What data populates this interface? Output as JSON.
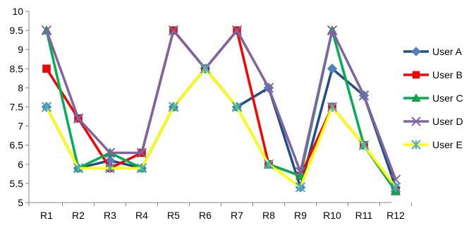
{
  "chart_data": {
    "type": "line",
    "title": "",
    "xlabel": "",
    "ylabel": "",
    "categories": [
      "R1",
      "R2",
      "R3",
      "R4",
      "R5",
      "R6",
      "R7",
      "R8",
      "R9",
      "R10",
      "R11",
      "R12"
    ],
    "ylim": [
      5,
      10
    ],
    "yticks": [
      "5",
      "5.5",
      "6",
      "6.5",
      "7",
      "7.5",
      "8",
      "8.5",
      "9",
      "9.5",
      "10"
    ],
    "grid": false,
    "legend_position": "right",
    "series": [
      {
        "name": "User A",
        "color": "#1F4E8C",
        "marker": "diamond",
        "values": [
          7.5,
          5.9,
          6.1,
          5.9,
          7.5,
          8.5,
          7.5,
          8.0,
          5.4,
          8.5,
          7.8,
          5.4
        ]
      },
      {
        "name": "User B",
        "color": "#FF0000",
        "marker": "square",
        "values": [
          8.5,
          7.2,
          5.9,
          6.3,
          9.5,
          8.5,
          9.5,
          6.0,
          5.7,
          7.5,
          6.5,
          5.3
        ]
      },
      {
        "name": "User C",
        "color": "#00B050",
        "marker": "triangle",
        "values": [
          9.5,
          5.9,
          6.3,
          5.9,
          7.5,
          8.5,
          7.5,
          6.0,
          5.7,
          9.5,
          6.5,
          5.3
        ]
      },
      {
        "name": "User D",
        "color": "#8064A2",
        "marker": "x",
        "values": [
          9.5,
          7.2,
          6.3,
          6.3,
          9.5,
          8.5,
          9.5,
          8.0,
          5.8,
          9.5,
          7.8,
          5.6
        ]
      },
      {
        "name": "User E",
        "color": "#FFFF00",
        "marker": "star",
        "values": [
          7.5,
          5.9,
          5.9,
          5.9,
          7.5,
          8.5,
          7.5,
          6.0,
          5.4,
          7.5,
          6.5,
          5.4
        ]
      }
    ]
  }
}
